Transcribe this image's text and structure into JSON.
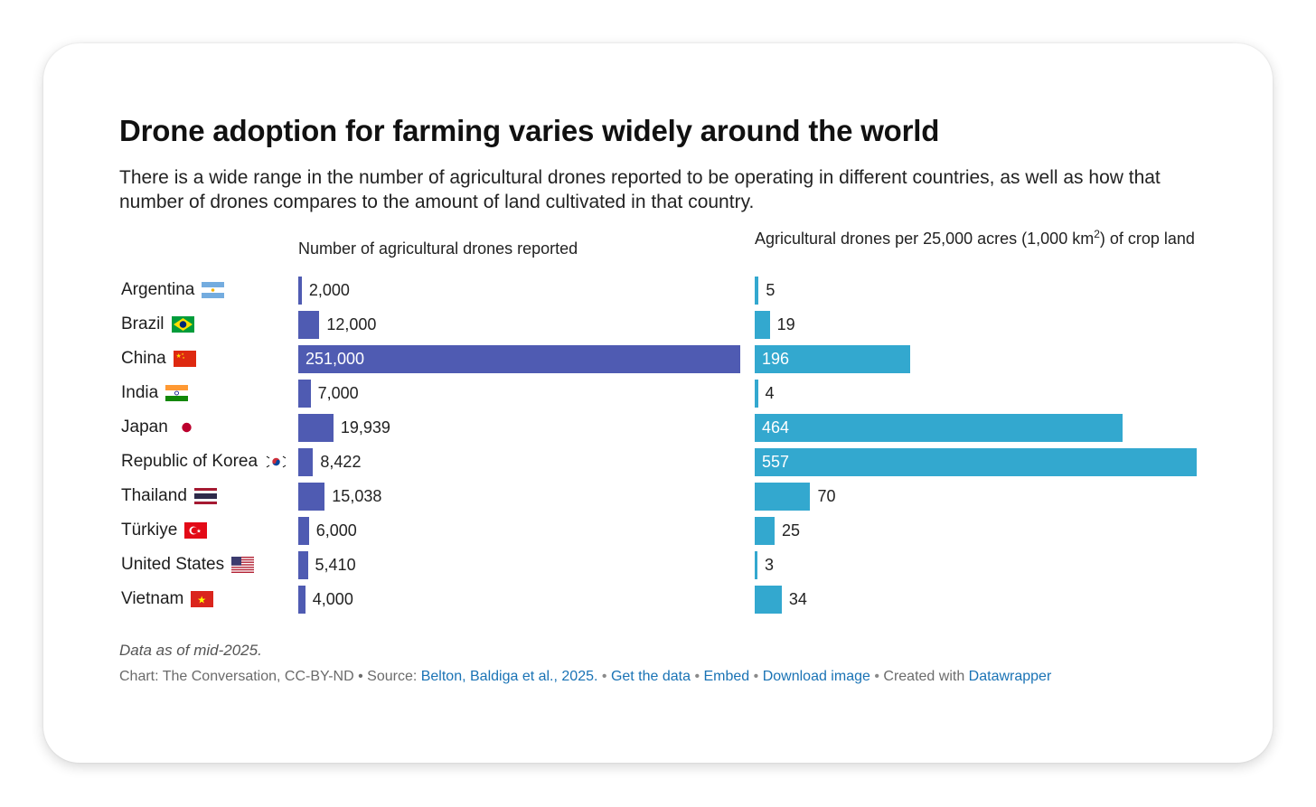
{
  "title": "Drone adoption for farming varies widely around the world",
  "subtitle": "There is a wide range in the number of agricultural drones reported to be operating in different countries, as well as how that number of drones compares to the amount of land cultivated in that country.",
  "colors": {
    "left_bar": "#4f5bb2",
    "right_bar": "#33a8cf"
  },
  "chart_data": [
    {
      "type": "bar",
      "orientation": "horizontal",
      "title": "Number of agricultural drones reported",
      "categories": [
        "Argentina",
        "Brazil",
        "China",
        "India",
        "Japan",
        "Republic of Korea",
        "Thailand",
        "Türkiye",
        "United States",
        "Vietnam"
      ],
      "values": [
        2000,
        12000,
        251000,
        7000,
        19939,
        8422,
        15038,
        6000,
        5410,
        4000
      ],
      "labels": [
        "2,000",
        "12,000",
        "251,000",
        "7,000",
        "19,939",
        "8,422",
        "15,038",
        "6,000",
        "5,410",
        "4,000"
      ],
      "xlim": [
        0,
        251000
      ]
    },
    {
      "type": "bar",
      "orientation": "horizontal",
      "title_parts": {
        "before": "Agricultural drones per 25,000 acres (1,000 km",
        "sup": "2",
        "after": ") of crop land"
      },
      "categories": [
        "Argentina",
        "Brazil",
        "China",
        "India",
        "Japan",
        "Republic of Korea",
        "Thailand",
        "Türkiye",
        "United States",
        "Vietnam"
      ],
      "values": [
        5,
        19,
        196,
        4,
        464,
        557,
        70,
        25,
        3,
        34
      ],
      "labels": [
        "5",
        "19",
        "196",
        "4",
        "464",
        "557",
        "70",
        "25",
        "3",
        "34"
      ],
      "xlim": [
        0,
        557
      ]
    }
  ],
  "countries": [
    {
      "name": "Argentina",
      "flag": "argentina-flag-icon"
    },
    {
      "name": "Brazil",
      "flag": "brazil-flag-icon"
    },
    {
      "name": "China",
      "flag": "china-flag-icon"
    },
    {
      "name": "India",
      "flag": "india-flag-icon"
    },
    {
      "name": "Japan",
      "flag": "japan-flag-icon"
    },
    {
      "name": "Republic of Korea",
      "flag": "korea-flag-icon"
    },
    {
      "name": "Thailand",
      "flag": "thailand-flag-icon"
    },
    {
      "name": "Türkiye",
      "flag": "turkiye-flag-icon"
    },
    {
      "name": "United States",
      "flag": "usa-flag-icon"
    },
    {
      "name": "Vietnam",
      "flag": "vietnam-flag-icon"
    }
  ],
  "footer": {
    "note": "Data as of mid-2025.",
    "prefix": "Chart: The Conversation, CC-BY-ND • Source: ",
    "source_link": "Belton, Baldiga et al., 2025.",
    "get_data": "Get the data",
    "embed": "Embed",
    "download": "Download image",
    "created_with": "Created with",
    "datawrapper": "Datawrapper"
  }
}
